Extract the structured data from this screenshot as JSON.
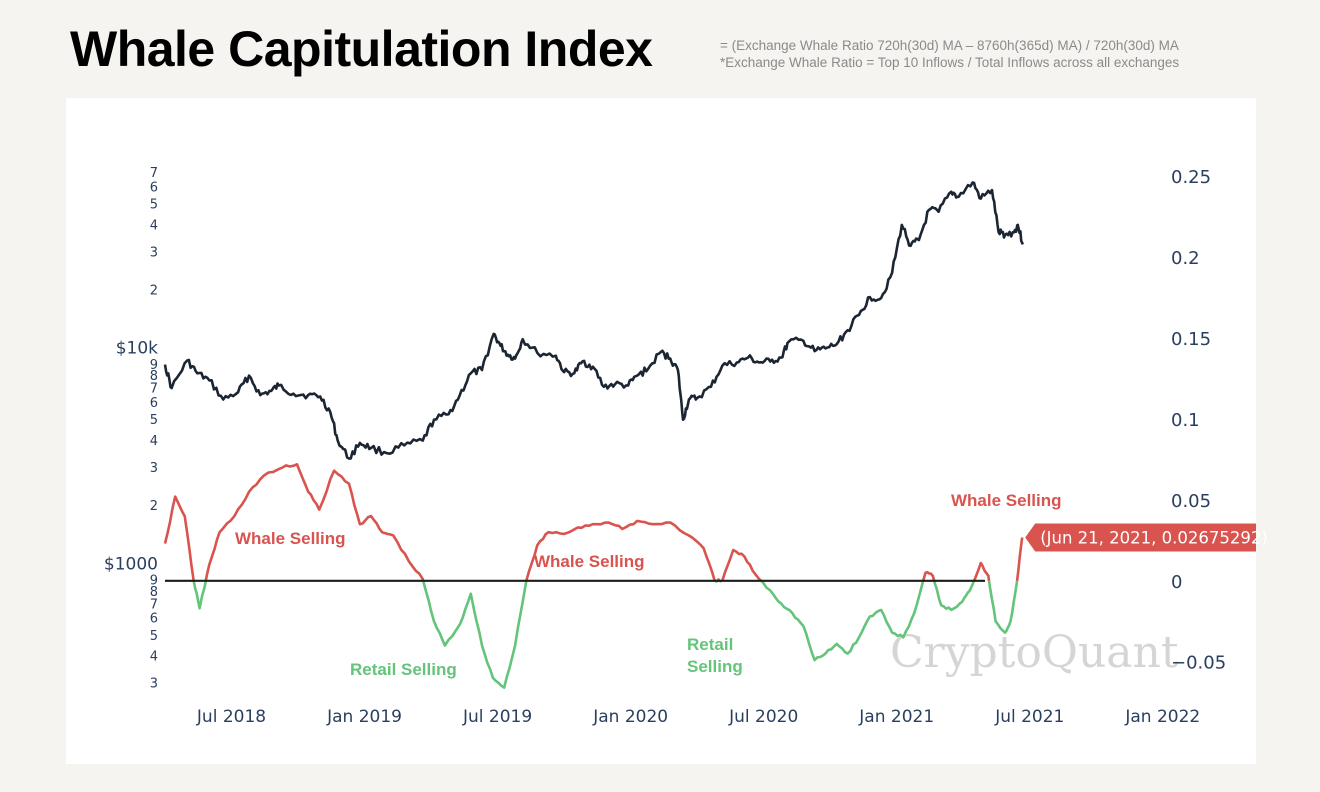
{
  "header": {
    "title": "Whale Capitulation Index",
    "formula_line1": "= (Exchange Whale Ratio 720h(30d) MA – 8760h(365d) MA) / 720h(30d) MA",
    "formula_line2": "*Exchange Whale Ratio = Top 10 Inflows / Total Inflows across all exchanges"
  },
  "watermark": "CryptoQuant",
  "chart_data": {
    "type": "line",
    "x_axis": {
      "tick_labels": [
        "Jul 2018",
        "Jan 2019",
        "Jul 2019",
        "Jan 2020",
        "Jul 2020",
        "Jan 2021",
        "Jul 2021",
        "Jan 2022"
      ],
      "range": [
        "2018-04",
        "2022-02"
      ]
    },
    "y_left": {
      "scale": "log",
      "range": [
        270,
        80000
      ],
      "major_labels": [
        "$1000",
        "$10k"
      ],
      "minor_labels": [
        "3",
        "4",
        "5",
        "6",
        "7",
        "8",
        "9",
        "2",
        "3",
        "4",
        "5",
        "6",
        "7",
        "8",
        "9",
        "2",
        "3",
        "4",
        "5",
        "6",
        "7"
      ]
    },
    "y_right": {
      "scale": "linear",
      "range": [
        -0.065,
        0.26
      ],
      "tick_labels": [
        "−0.05",
        "0",
        "0.05",
        "0.1",
        "0.15",
        "0.2",
        "0.25"
      ]
    },
    "series": [
      {
        "axis": "left",
        "color": "#1c2633",
        "points": [
          [
            "2018-04-01",
            9000
          ],
          [
            "2018-04-10",
            7000
          ],
          [
            "2018-05-01",
            9400
          ],
          [
            "2018-05-15",
            8200
          ],
          [
            "2018-06-01",
            7600
          ],
          [
            "2018-06-20",
            6200
          ],
          [
            "2018-07-10",
            6700
          ],
          [
            "2018-07-25",
            8000
          ],
          [
            "2018-08-10",
            6500
          ],
          [
            "2018-08-25",
            6800
          ],
          [
            "2018-09-05",
            7200
          ],
          [
            "2018-09-25",
            6600
          ],
          [
            "2018-10-15",
            6500
          ],
          [
            "2018-11-01",
            6400
          ],
          [
            "2018-11-15",
            5400
          ],
          [
            "2018-11-25",
            4000
          ],
          [
            "2018-12-10",
            3300
          ],
          [
            "2018-12-25",
            3900
          ],
          [
            "2019-01-10",
            3700
          ],
          [
            "2019-02-01",
            3500
          ],
          [
            "2019-02-25",
            3800
          ],
          [
            "2019-03-20",
            4000
          ],
          [
            "2019-04-05",
            5000
          ],
          [
            "2019-04-25",
            5300
          ],
          [
            "2019-05-10",
            6500
          ],
          [
            "2019-05-25",
            8200
          ],
          [
            "2019-06-10",
            8500
          ],
          [
            "2019-06-26",
            12500
          ],
          [
            "2019-07-05",
            11000
          ],
          [
            "2019-07-15",
            10000
          ],
          [
            "2019-07-25",
            9600
          ],
          [
            "2019-08-05",
            11800
          ],
          [
            "2019-08-25",
            10200
          ],
          [
            "2019-09-20",
            9900
          ],
          [
            "2019-10-01",
            8300
          ],
          [
            "2019-10-15",
            8200
          ],
          [
            "2019-10-26",
            9300
          ],
          [
            "2019-11-10",
            8800
          ],
          [
            "2019-11-25",
            7100
          ],
          [
            "2019-12-10",
            7300
          ],
          [
            "2019-12-28",
            7200
          ],
          [
            "2020-01-10",
            8000
          ],
          [
            "2020-01-25",
            8600
          ],
          [
            "2020-02-12",
            10300
          ],
          [
            "2020-02-25",
            9600
          ],
          [
            "2020-03-05",
            8500
          ],
          [
            "2020-03-12",
            5000
          ],
          [
            "2020-03-20",
            6200
          ],
          [
            "2020-04-01",
            6300
          ],
          [
            "2020-04-20",
            7100
          ],
          [
            "2020-05-05",
            8900
          ],
          [
            "2020-05-25",
            9200
          ],
          [
            "2020-06-10",
            9700
          ],
          [
            "2020-06-25",
            9200
          ],
          [
            "2020-07-10",
            9300
          ],
          [
            "2020-07-25",
            9700
          ],
          [
            "2020-08-05",
            11500
          ],
          [
            "2020-08-25",
            11600
          ],
          [
            "2020-09-10",
            10400
          ],
          [
            "2020-09-25",
            10700
          ],
          [
            "2020-10-10",
            11200
          ],
          [
            "2020-10-25",
            13000
          ],
          [
            "2020-11-10",
            15300
          ],
          [
            "2020-11-25",
            18500
          ],
          [
            "2020-12-10",
            18300
          ],
          [
            "2020-12-25",
            24000
          ],
          [
            "2021-01-08",
            40000
          ],
          [
            "2021-01-20",
            32000
          ],
          [
            "2021-02-01",
            34000
          ],
          [
            "2021-02-15",
            47000
          ],
          [
            "2021-02-28",
            46000
          ],
          [
            "2021-03-15",
            57000
          ],
          [
            "2021-03-25",
            54000
          ],
          [
            "2021-04-14",
            63000
          ],
          [
            "2021-04-25",
            53000
          ],
          [
            "2021-05-10",
            58000
          ],
          [
            "2021-05-19",
            37000
          ],
          [
            "2021-05-28",
            36000
          ],
          [
            "2021-06-10",
            37000
          ],
          [
            "2021-06-15",
            40000
          ],
          [
            "2021-06-22",
            32500
          ]
        ]
      },
      {
        "axis": "right",
        "color_positive": "#d9534f",
        "color_negative": "#63c47a",
        "points": [
          [
            "2018-04-01",
            0.023
          ],
          [
            "2018-04-15",
            0.052
          ],
          [
            "2018-04-28",
            0.04
          ],
          [
            "2018-05-10",
            0.0
          ],
          [
            "2018-05-18",
            -0.017
          ],
          [
            "2018-06-01",
            0.01
          ],
          [
            "2018-06-15",
            0.03
          ],
          [
            "2018-07-05",
            0.04
          ],
          [
            "2018-07-25",
            0.055
          ],
          [
            "2018-08-15",
            0.065
          ],
          [
            "2018-09-10",
            0.07
          ],
          [
            "2018-09-30",
            0.072
          ],
          [
            "2018-10-15",
            0.055
          ],
          [
            "2018-10-30",
            0.044
          ],
          [
            "2018-11-20",
            0.068
          ],
          [
            "2018-12-10",
            0.06
          ],
          [
            "2018-12-25",
            0.035
          ],
          [
            "2019-01-10",
            0.04
          ],
          [
            "2019-01-25",
            0.03
          ],
          [
            "2019-02-10",
            0.028
          ],
          [
            "2019-03-01",
            0.012
          ],
          [
            "2019-03-20",
            0.001
          ],
          [
            "2019-04-05",
            -0.025
          ],
          [
            "2019-04-20",
            -0.04
          ],
          [
            "2019-05-10",
            -0.027
          ],
          [
            "2019-05-25",
            -0.008
          ],
          [
            "2019-06-10",
            -0.04
          ],
          [
            "2019-06-25",
            -0.06
          ],
          [
            "2019-07-10",
            -0.066
          ],
          [
            "2019-07-25",
            -0.04
          ],
          [
            "2019-08-10",
            0.0
          ],
          [
            "2019-08-25",
            0.022
          ],
          [
            "2019-09-10",
            0.03
          ],
          [
            "2019-10-01",
            0.029
          ],
          [
            "2019-10-20",
            0.033
          ],
          [
            "2019-11-10",
            0.035
          ],
          [
            "2019-12-01",
            0.036
          ],
          [
            "2019-12-20",
            0.032
          ],
          [
            "2020-01-10",
            0.037
          ],
          [
            "2020-02-01",
            0.035
          ],
          [
            "2020-02-25",
            0.036
          ],
          [
            "2020-03-20",
            0.028
          ],
          [
            "2020-04-10",
            0.02
          ],
          [
            "2020-04-25",
            0.0
          ],
          [
            "2020-05-05",
            0.0
          ],
          [
            "2020-05-20",
            0.019
          ],
          [
            "2020-06-05",
            0.015
          ],
          [
            "2020-06-20",
            0.004
          ],
          [
            "2020-07-10",
            -0.006
          ],
          [
            "2020-07-25",
            -0.014
          ],
          [
            "2020-08-10",
            -0.02
          ],
          [
            "2020-08-25",
            -0.028
          ],
          [
            "2020-09-10",
            -0.049
          ],
          [
            "2020-09-25",
            -0.045
          ],
          [
            "2020-10-10",
            -0.039
          ],
          [
            "2020-10-25",
            -0.045
          ],
          [
            "2020-11-10",
            -0.035
          ],
          [
            "2020-11-25",
            -0.022
          ],
          [
            "2020-12-10",
            -0.018
          ],
          [
            "2020-12-25",
            -0.032
          ],
          [
            "2021-01-10",
            -0.035
          ],
          [
            "2021-01-25",
            -0.02
          ],
          [
            "2021-02-10",
            0.005
          ],
          [
            "2021-02-20",
            0.003
          ],
          [
            "2021-03-01",
            -0.015
          ],
          [
            "2021-03-15",
            -0.018
          ],
          [
            "2021-03-30",
            -0.013
          ],
          [
            "2021-04-10",
            -0.006
          ],
          [
            "2021-04-25",
            0.011
          ],
          [
            "2021-05-05",
            0.003
          ],
          [
            "2021-05-15",
            -0.025
          ],
          [
            "2021-05-28",
            -0.032
          ],
          [
            "2021-06-05",
            -0.025
          ],
          [
            "2021-06-14",
            0.0
          ],
          [
            "2021-06-21",
            0.02675292
          ]
        ]
      }
    ],
    "zero_line_color": "#1c1c1c",
    "annotations": [
      {
        "text": "Whale Selling",
        "color": "#d9534f"
      },
      {
        "text": "Whale Selling",
        "color": "#d9534f"
      },
      {
        "text": "Whale Selling",
        "color": "#d9534f"
      },
      {
        "text": "Retail Selling",
        "color": "#63c47a"
      },
      {
        "text": "Retail Selling",
        "color": "#63c47a"
      }
    ],
    "hover_label": {
      "text": "(Jun 21, 2021, 0.02675292)",
      "background": "#d9534f",
      "text_color": "#ffffff"
    }
  }
}
